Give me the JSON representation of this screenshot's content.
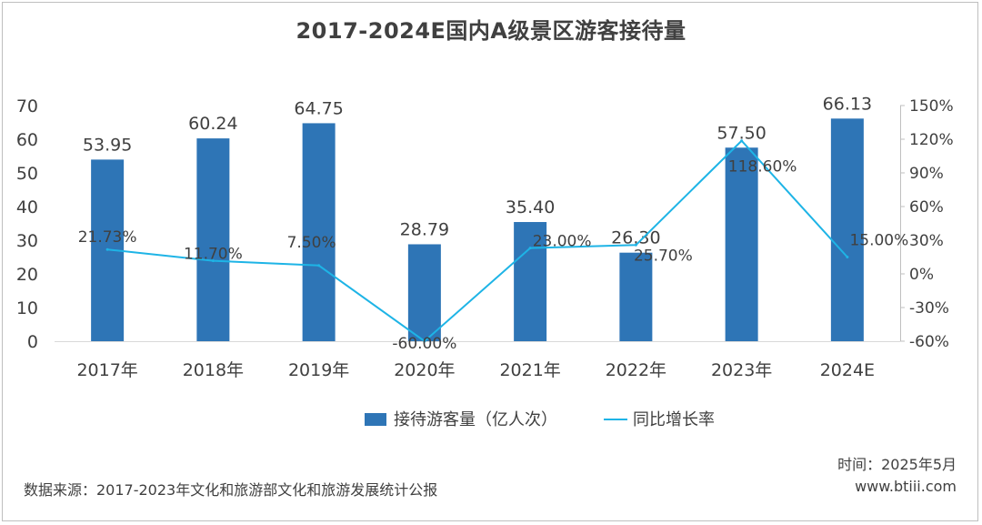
{
  "title": "2017-2024E国内A级景区游客接待量",
  "footer": {
    "time": "时间：2025年5月",
    "website": "www.btiii.com",
    "source": "数据来源：2017-2023年文化和旅游部文化和旅游发展统计公报"
  },
  "chart_data": {
    "type": "bar+line",
    "categories": [
      "2017年",
      "2018年",
      "2019年",
      "2020年",
      "2021年",
      "2022年",
      "2023年",
      "2024E"
    ],
    "series": [
      {
        "name": "接待游客量（亿人次）",
        "type": "bar",
        "axis": "left",
        "color": "#2e75b6",
        "values": [
          53.95,
          60.24,
          64.75,
          28.79,
          35.4,
          26.3,
          57.5,
          66.13
        ],
        "labels": [
          "53.95",
          "60.24",
          "64.75",
          "28.79",
          "35.40",
          "26.30",
          "57.50",
          "66.13"
        ]
      },
      {
        "name": "同比增长率",
        "type": "line",
        "axis": "right",
        "color": "#1eb4e6",
        "values": [
          21.73,
          11.7,
          7.5,
          -60.0,
          23.0,
          25.7,
          118.6,
          15.0
        ],
        "labels": [
          "21.73%",
          "11.70%",
          "7.50%",
          "-60.00%",
          "23.00%",
          "25.70%",
          "118.60%",
          "15.00%"
        ]
      }
    ],
    "y_left": {
      "min": 0,
      "max": 70,
      "ticks": [
        "0",
        "10",
        "20",
        "30",
        "40",
        "50",
        "60",
        "70"
      ]
    },
    "y_right": {
      "min": -60,
      "max": 150,
      "ticks": [
        "-60%",
        "-30%",
        "0%",
        "30%",
        "60%",
        "90%",
        "120%",
        "150%"
      ]
    },
    "grid": false,
    "legend_position": "bottom"
  }
}
